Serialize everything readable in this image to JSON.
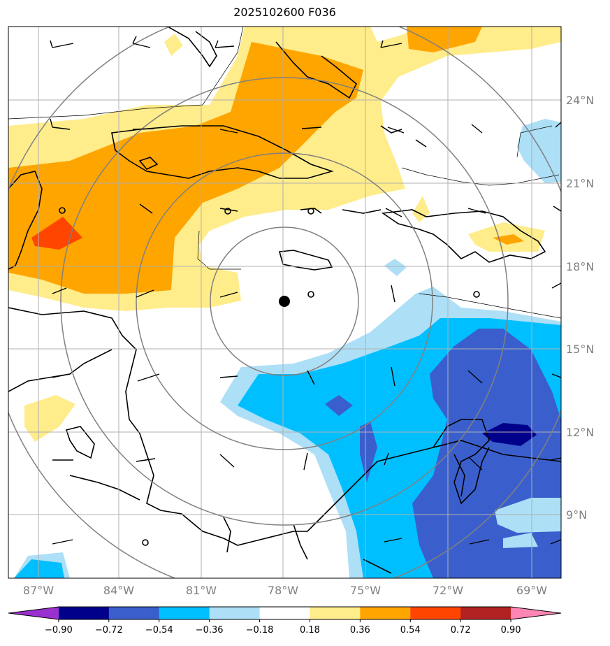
{
  "title": "2025102600 F036",
  "lon_labels": [
    "87°W",
    "84°W",
    "81°W",
    "78°W",
    "75°W",
    "72°W",
    "69°W"
  ],
  "lat_labels": [
    "24°N",
    "21°N",
    "18°N",
    "15°N",
    "12°N",
    "9°N"
  ],
  "colorbar": {
    "colors": [
      "#9b30d0",
      "#00008b",
      "#3a5fcd",
      "#00bfff",
      "#addff7",
      "#ffffff",
      "#ffec8b",
      "#ffa500",
      "#ff4500",
      "#b22222",
      "#ff85b4"
    ],
    "ticks": [
      "−0.90",
      "−0.72",
      "−0.54",
      "−0.36",
      "−0.18",
      "0.18",
      "0.36",
      "0.54",
      "0.72",
      "0.90"
    ]
  },
  "storm_center": {
    "lon": -78.0,
    "lat": 16.7
  }
}
